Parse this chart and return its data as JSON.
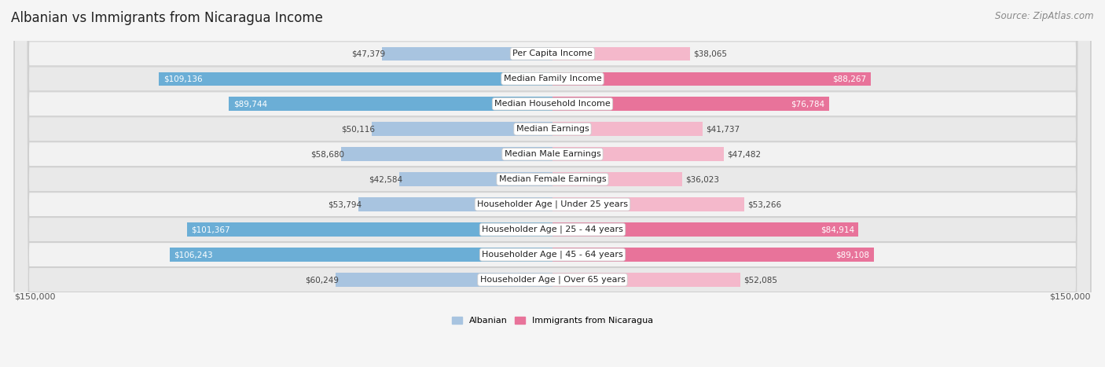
{
  "title": "Albanian vs Immigrants from Nicaragua Income",
  "source": "Source: ZipAtlas.com",
  "categories": [
    "Per Capita Income",
    "Median Family Income",
    "Median Household Income",
    "Median Earnings",
    "Median Male Earnings",
    "Median Female Earnings",
    "Householder Age | Under 25 years",
    "Householder Age | 25 - 44 years",
    "Householder Age | 45 - 64 years",
    "Householder Age | Over 65 years"
  ],
  "albanian_values": [
    47379,
    109136,
    89744,
    50116,
    58680,
    42584,
    53794,
    101367,
    106243,
    60249
  ],
  "nicaragua_values": [
    38065,
    88267,
    76784,
    41737,
    47482,
    36023,
    53266,
    84914,
    89108,
    52085
  ],
  "alb_color_light": "#a8c4e0",
  "alb_color_dark": "#6baed6",
  "nic_color_light": "#f4b8cb",
  "nic_color_dark": "#e8739a",
  "albanian_label": "Albanian",
  "nicaragua_label": "Immigrants from Nicaragua",
  "x_max": 150000,
  "x_label_left": "$150,000",
  "x_label_right": "$150,000",
  "title_fontsize": 12,
  "source_fontsize": 8.5,
  "cat_fontsize": 8,
  "val_fontsize": 7.5,
  "row_bg_odd": "#f0f0f0",
  "row_bg_even": "#e8e8e8",
  "fig_bg": "#f5f5f5",
  "alb_threshold": 75000,
  "nic_threshold": 75000
}
